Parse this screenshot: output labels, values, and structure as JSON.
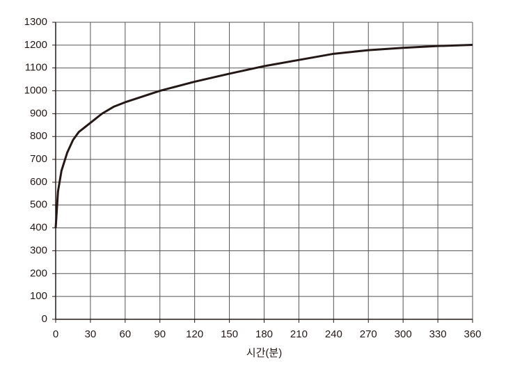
{
  "chart_data": {
    "type": "line",
    "xlabel": "시간(분)",
    "x": [
      0,
      2,
      5,
      10,
      15,
      20,
      30,
      40,
      50,
      60,
      90,
      120,
      150,
      180,
      210,
      240,
      270,
      300,
      330,
      360
    ],
    "series": [
      {
        "color": "#231815",
        "values": [
          400,
          560,
          650,
          730,
          785,
          820,
          860,
          900,
          930,
          950,
          1000,
          1040,
          1075,
          1108,
          1135,
          1162,
          1178,
          1188,
          1196,
          1201
        ]
      }
    ],
    "xlim": [
      0,
      360
    ],
    "xticks": [
      0,
      30,
      60,
      90,
      120,
      150,
      180,
      210,
      240,
      270,
      300,
      330,
      360
    ],
    "ylim": [
      0,
      1300
    ],
    "yticks": [
      0,
      100,
      200,
      300,
      400,
      500,
      600,
      700,
      800,
      900,
      1000,
      1100,
      1200,
      1300
    ],
    "grid": true
  }
}
